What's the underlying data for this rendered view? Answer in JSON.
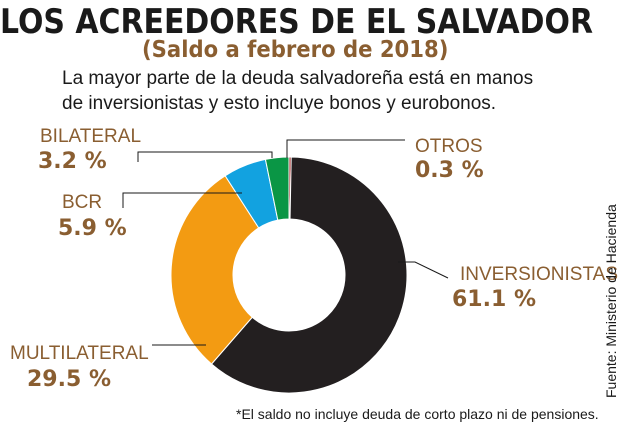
{
  "title": "LOS ACREEDORES DE EL SALVADOR",
  "subtitle": "(Saldo a febrero de 2018)",
  "intro": [
    "La mayor parte de la deuda salvadoreña está en manos",
    "de inversionistas y esto incluye bonos y eurobonos."
  ],
  "footnote": "*El saldo no incluye deuda de corto plazo ni de pensiones.",
  "source": "Fuente: Ministerio de Hacienda",
  "chart_data": {
    "type": "pie",
    "variant": "donut",
    "start": "12 o'clock, clockwise",
    "slices": [
      {
        "name": "OTROS",
        "label": "0.3 %",
        "value": 0.3,
        "color": "#9b1b1b"
      },
      {
        "name": "INVERSIONISTAS",
        "label": "61.1 %",
        "value": 61.1,
        "color": "#231f20"
      },
      {
        "name": "MULTILATERAL",
        "label": "29.5 %",
        "value": 29.5,
        "color": "#f39b12"
      },
      {
        "name": "BCR",
        "label": "5.9 %",
        "value": 5.9,
        "color": "#12a2e0"
      },
      {
        "name": "BILATERAL",
        "label": "3.2 %",
        "value": 3.2,
        "color": "#0a9645"
      }
    ]
  }
}
